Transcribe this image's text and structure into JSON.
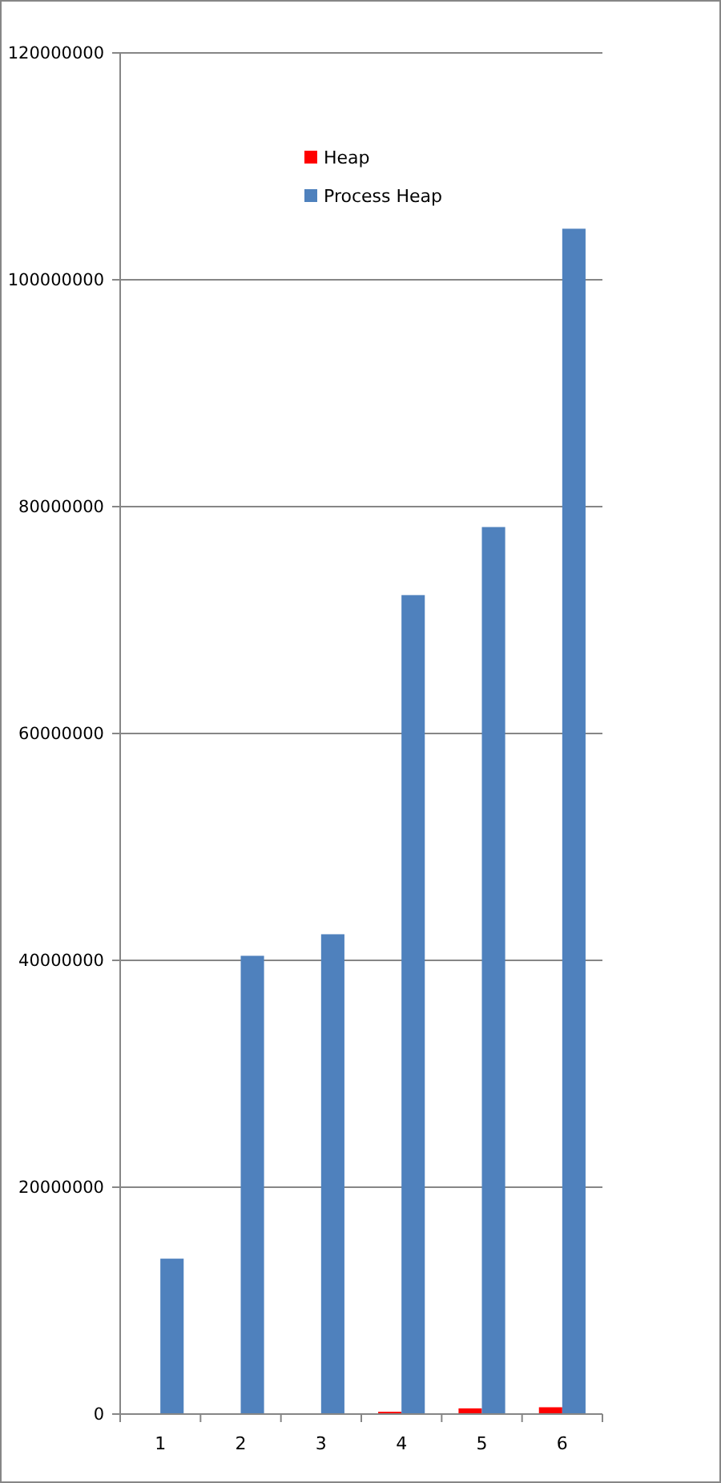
{
  "chart_data": {
    "type": "bar",
    "categories": [
      "1",
      "2",
      "3",
      "4",
      "5",
      "6"
    ],
    "series": [
      {
        "name": "Heap",
        "color": "#ff0000",
        "values": [
          0,
          0,
          0,
          200000,
          500000,
          600000
        ]
      },
      {
        "name": "Process Heap",
        "color": "#4f81bd",
        "values": [
          13700000,
          40400000,
          42300000,
          72200000,
          78200000,
          104500000
        ]
      }
    ],
    "ylim": [
      0,
      120000000
    ],
    "yticks": [
      0,
      20000000,
      40000000,
      60000000,
      80000000,
      100000000,
      120000000
    ],
    "grid": "y",
    "legend": "top"
  }
}
